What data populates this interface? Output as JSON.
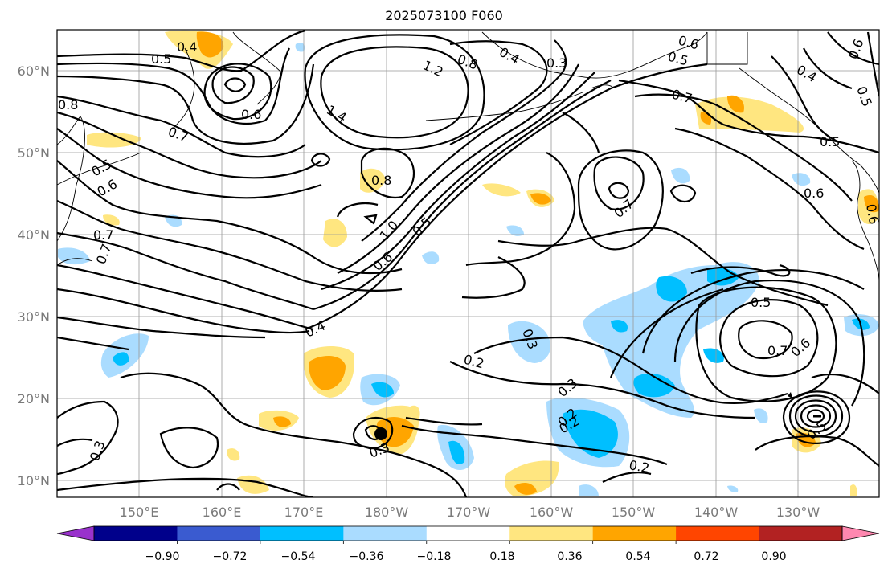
{
  "title": "2025073100 F060",
  "lon_labels": [
    "150°E",
    "160°E",
    "170°E",
    "180°W",
    "170°W",
    "160°W",
    "150°W",
    "140°W",
    "130°W"
  ],
  "lat_labels": [
    "60°N",
    "50°N",
    "40°N",
    "30°N",
    "20°N",
    "10°N"
  ],
  "colorbar": {
    "colors": [
      "#9932cc",
      "#00008b",
      "#3a5bd0",
      "#00bfff",
      "#aadcff",
      "#ffffff",
      "#ffe680",
      "#ffa500",
      "#ff4500",
      "#b22222",
      "#ff88b0"
    ],
    "tick_labels": [
      "−0.90",
      "−0.72",
      "−0.54",
      "−0.36",
      "−0.18",
      "0.18",
      "0.36",
      "0.54",
      "0.72",
      "0.90"
    ]
  },
  "contour_labels": [
    "0.4",
    "0.5",
    "0.6",
    "0.7",
    "0.8",
    "1.2",
    "1.4",
    "0.8",
    "0.4",
    "0.3",
    "0.6",
    "0.5",
    "0.6",
    "0.4",
    "0.5",
    "0.7",
    "0.5",
    "0.6",
    "0.7",
    "0.6",
    "0.7",
    "0.5",
    "0.6",
    "0.7",
    "0.8",
    "1.0",
    "0.5",
    "0.6",
    "0.4",
    "0.3",
    "0.2",
    "0.3",
    "0.2",
    "0.3",
    "0.2",
    "0.5",
    "0.7",
    "0.6",
    "0.5",
    "0.2",
    "0.3"
  ]
}
